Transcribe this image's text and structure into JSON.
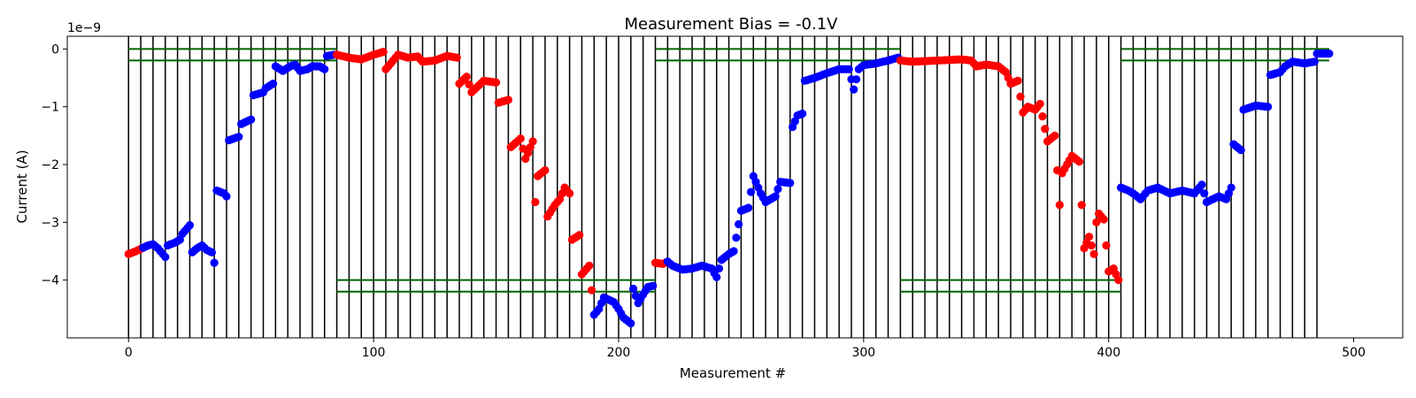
{
  "chart_data": {
    "type": "scatter",
    "title": "Measurement Bias = -0.1V",
    "xlabel": "Measurement #",
    "ylabel": "Current (A)",
    "y_offset_label": "1e−9",
    "xlim": [
      -25,
      520
    ],
    "ylim": [
      -5.0,
      0.22
    ],
    "y_units_scale": 1e-09,
    "x_ticks": [
      0,
      100,
      200,
      300,
      400,
      500
    ],
    "x_tick_labels": [
      "0",
      "100",
      "200",
      "300",
      "400",
      "500"
    ],
    "y_ticks": [
      0,
      -1,
      -2,
      -3,
      -4
    ],
    "y_tick_labels": [
      "0",
      "−1",
      "−2",
      "−3",
      "−4"
    ],
    "grid": false,
    "colors": {
      "blue": "#0000ff",
      "red": "#ff0000",
      "vline": "#000000",
      "threshold": "#006400"
    },
    "vertical_lines_x": [
      0,
      5,
      10,
      15,
      20,
      25,
      30,
      35,
      40,
      45,
      50,
      55,
      60,
      65,
      70,
      75,
      80,
      85,
      90,
      95,
      100,
      105,
      110,
      115,
      120,
      125,
      130,
      135,
      140,
      145,
      150,
      155,
      160,
      165,
      170,
      175,
      180,
      185,
      190,
      195,
      200,
      205,
      210,
      215,
      220,
      225,
      230,
      235,
      240,
      245,
      250,
      255,
      260,
      265,
      270,
      275,
      280,
      285,
      290,
      295,
      300,
      305,
      310,
      315,
      320,
      325,
      330,
      335,
      340,
      345,
      350,
      355,
      360,
      365,
      370,
      375,
      380,
      385,
      390,
      395,
      400,
      405,
      410,
      415,
      420,
      425,
      430,
      435,
      440,
      445,
      450,
      455,
      460,
      465,
      470,
      475,
      480,
      485
    ],
    "threshold_segments": [
      {
        "x": [
          0,
          85
        ],
        "y": [
          0,
          -0.2
        ]
      },
      {
        "x": [
          85,
          215
        ],
        "y": [
          -4.0,
          -4.2
        ]
      },
      {
        "x": [
          215,
          315
        ],
        "y": [
          0,
          -0.2
        ]
      },
      {
        "x": [
          315,
          405
        ],
        "y": [
          -4.0,
          -4.2
        ]
      },
      {
        "x": [
          405,
          490
        ],
        "y": [
          0,
          -0.2
        ]
      }
    ],
    "anchors": [
      [
        0,
        -3.55
      ],
      [
        3,
        -3.5
      ],
      [
        5,
        -3.46
      ],
      [
        8,
        -3.4
      ],
      [
        10,
        -3.38
      ],
      [
        12,
        -3.45
      ],
      [
        14,
        -3.55
      ],
      [
        15,
        -3.6
      ],
      [
        16,
        -3.4
      ],
      [
        19,
        -3.35
      ],
      [
        21,
        -3.3
      ],
      [
        22,
        -3.2
      ],
      [
        24,
        -3.1
      ],
      [
        25,
        -3.05
      ],
      [
        26,
        -3.52
      ],
      [
        28,
        -3.45
      ],
      [
        30,
        -3.4
      ],
      [
        32,
        -3.48
      ],
      [
        34,
        -3.52
      ],
      [
        35,
        -3.7
      ],
      [
        36,
        -2.45
      ],
      [
        39,
        -2.5
      ],
      [
        40,
        -2.55
      ],
      [
        41,
        -1.58
      ],
      [
        45,
        -1.52
      ],
      [
        46,
        -1.3
      ],
      [
        50,
        -1.22
      ],
      [
        51,
        -0.8
      ],
      [
        55,
        -0.75
      ],
      [
        56,
        -0.68
      ],
      [
        59,
        -0.6
      ],
      [
        60,
        -0.3
      ],
      [
        63,
        -0.38
      ],
      [
        66,
        -0.3
      ],
      [
        68,
        -0.27
      ],
      [
        70,
        -0.38
      ],
      [
        73,
        -0.35
      ],
      [
        75,
        -0.3
      ],
      [
        78,
        -0.3
      ],
      [
        80,
        -0.35
      ],
      [
        81,
        -0.12
      ],
      [
        84,
        -0.1
      ],
      [
        85,
        -0.1
      ],
      [
        90,
        -0.15
      ],
      [
        95,
        -0.18
      ],
      [
        100,
        -0.1
      ],
      [
        104,
        -0.05
      ],
      [
        105,
        -0.35
      ],
      [
        107,
        -0.25
      ],
      [
        110,
        -0.1
      ],
      [
        114,
        -0.15
      ],
      [
        118,
        -0.13
      ],
      [
        120,
        -0.22
      ],
      [
        125,
        -0.2
      ],
      [
        130,
        -0.12
      ],
      [
        134,
        -0.15
      ],
      [
        135,
        -0.6
      ],
      [
        138,
        -0.48
      ],
      [
        140,
        -0.75
      ],
      [
        145,
        -0.55
      ],
      [
        150,
        -0.58
      ],
      [
        151,
        -0.93
      ],
      [
        155,
        -0.88
      ],
      [
        156,
        -1.7
      ],
      [
        160,
        -1.55
      ],
      [
        162,
        -1.9
      ],
      [
        165,
        -1.6
      ],
      [
        166,
        -2.65
      ],
      [
        167,
        -2.2
      ],
      [
        170,
        -2.1
      ],
      [
        171,
        -2.9
      ],
      [
        174,
        -2.7
      ],
      [
        176,
        -2.6
      ],
      [
        178,
        -2.4
      ],
      [
        180,
        -2.5
      ],
      [
        181,
        -3.3
      ],
      [
        184,
        -3.22
      ],
      [
        185,
        -3.9
      ],
      [
        188,
        -3.75
      ],
      [
        190,
        -4.6
      ],
      [
        192,
        -4.5
      ],
      [
        194,
        -4.3
      ],
      [
        198,
        -4.38
      ],
      [
        200,
        -4.5
      ],
      [
        202,
        -4.65
      ],
      [
        205,
        -4.75
      ],
      [
        206,
        -4.15
      ],
      [
        208,
        -4.4
      ],
      [
        210,
        -4.25
      ],
      [
        212,
        -4.12
      ],
      [
        214,
        -4.1
      ],
      [
        215,
        -3.7
      ],
      [
        218,
        -3.72
      ],
      [
        220,
        -3.68
      ],
      [
        222,
        -3.75
      ],
      [
        226,
        -3.82
      ],
      [
        230,
        -3.8
      ],
      [
        234,
        -3.75
      ],
      [
        238,
        -3.8
      ],
      [
        240,
        -3.95
      ],
      [
        242,
        -3.65
      ],
      [
        245,
        -3.55
      ],
      [
        247,
        -3.5
      ],
      [
        250,
        -2.8
      ],
      [
        253,
        -2.75
      ],
      [
        255,
        -2.2
      ],
      [
        258,
        -2.5
      ],
      [
        260,
        -2.65
      ],
      [
        264,
        -2.55
      ],
      [
        266,
        -2.3
      ],
      [
        270,
        -2.32
      ],
      [
        271,
        -1.35
      ],
      [
        273,
        -1.15
      ],
      [
        275,
        -1.12
      ],
      [
        276,
        -0.55
      ],
      [
        280,
        -0.5
      ],
      [
        285,
        -0.42
      ],
      [
        290,
        -0.35
      ],
      [
        294,
        -0.35
      ],
      [
        296,
        -0.7
      ],
      [
        298,
        -0.35
      ],
      [
        300,
        -0.28
      ],
      [
        305,
        -0.25
      ],
      [
        310,
        -0.2
      ],
      [
        314,
        -0.15
      ],
      [
        315,
        -0.2
      ],
      [
        320,
        -0.22
      ],
      [
        330,
        -0.2
      ],
      [
        340,
        -0.18
      ],
      [
        344,
        -0.2
      ],
      [
        346,
        -0.3
      ],
      [
        350,
        -0.27
      ],
      [
        355,
        -0.3
      ],
      [
        358,
        -0.4
      ],
      [
        360,
        -0.6
      ],
      [
        363,
        -0.55
      ],
      [
        365,
        -1.1
      ],
      [
        367,
        -1.0
      ],
      [
        370,
        -1.05
      ],
      [
        372,
        -0.95
      ],
      [
        375,
        -1.6
      ],
      [
        378,
        -1.5
      ],
      [
        380,
        -2.7
      ],
      [
        381,
        -2.15
      ],
      [
        385,
        -1.85
      ],
      [
        388,
        -1.95
      ],
      [
        390,
        -3.45
      ],
      [
        392,
        -3.25
      ],
      [
        394,
        -3.55
      ],
      [
        395,
        -3.0
      ],
      [
        396,
        -2.85
      ],
      [
        398,
        -2.95
      ],
      [
        400,
        -3.85
      ],
      [
        402,
        -3.8
      ],
      [
        404,
        -4.0
      ],
      [
        405,
        -2.4
      ],
      [
        408,
        -2.45
      ],
      [
        410,
        -2.5
      ],
      [
        413,
        -2.6
      ],
      [
        416,
        -2.45
      ],
      [
        420,
        -2.4
      ],
      [
        425,
        -2.5
      ],
      [
        430,
        -2.45
      ],
      [
        435,
        -2.5
      ],
      [
        438,
        -2.35
      ],
      [
        440,
        -2.65
      ],
      [
        445,
        -2.55
      ],
      [
        448,
        -2.6
      ],
      [
        450,
        -2.4
      ],
      [
        451,
        -1.65
      ],
      [
        454,
        -1.75
      ],
      [
        455,
        -1.05
      ],
      [
        460,
        -0.98
      ],
      [
        465,
        -1.0
      ],
      [
        466,
        -0.45
      ],
      [
        470,
        -0.4
      ],
      [
        472,
        -0.3
      ],
      [
        475,
        -0.22
      ],
      [
        480,
        -0.25
      ],
      [
        484,
        -0.22
      ],
      [
        485,
        -0.08
      ],
      [
        490,
        -0.08
      ]
    ],
    "red_ranges": [
      [
        0,
        5
      ],
      [
        85,
        189
      ],
      [
        215,
        219
      ],
      [
        315,
        404
      ]
    ],
    "blue_ranges": [
      [
        6,
        84
      ],
      [
        190,
        214
      ],
      [
        220,
        314
      ],
      [
        405,
        490
      ]
    ]
  }
}
